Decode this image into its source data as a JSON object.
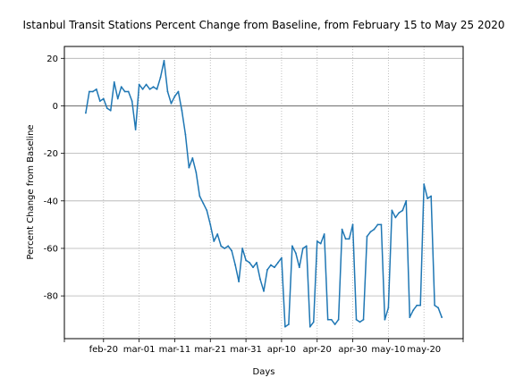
{
  "chart_data": {
    "type": "line",
    "title": "Istanbul Transit Stations Percent Change from Baseline, from February 15 to May 25 2020",
    "xlabel": "Days",
    "ylabel": "Percent Change from Baseline",
    "x_start": "2020-02-15",
    "x_end": "2020-05-25",
    "xlim": [
      "2020-02-09",
      "2020-05-31"
    ],
    "ylim": [
      -98,
      25
    ],
    "x_ticks": [
      {
        "date": "2020-02-20",
        "label": "feb-20"
      },
      {
        "date": "2020-03-01",
        "label": "mar-01"
      },
      {
        "date": "2020-03-11",
        "label": "mar-11"
      },
      {
        "date": "2020-03-21",
        "label": "mar-21"
      },
      {
        "date": "2020-03-31",
        "label": "mar-31"
      },
      {
        "date": "2020-04-10",
        "label": "apr-10"
      },
      {
        "date": "2020-04-20",
        "label": "apr-20"
      },
      {
        "date": "2020-04-30",
        "label": "apr-30"
      },
      {
        "date": "2020-05-10",
        "label": "may-10"
      },
      {
        "date": "2020-05-20",
        "label": "may-20"
      }
    ],
    "y_ticks": [
      20,
      0,
      -20,
      -40,
      -60,
      -80
    ],
    "grid": {
      "x": "dotted",
      "y": "solid"
    },
    "baseline": 0,
    "line_color": "#1f77b4",
    "values": [
      -3,
      6,
      6,
      7,
      2,
      3,
      -1,
      -2,
      10,
      3,
      8,
      6,
      6,
      2,
      -10,
      9,
      7,
      9,
      7,
      8,
      7,
      12,
      19,
      6,
      1,
      4,
      6,
      -2,
      -12,
      -26,
      -22,
      -28,
      -38,
      -41,
      -44,
      -50,
      -57,
      -54,
      -59,
      -60,
      -59,
      -61,
      -67,
      -74,
      -60,
      -65,
      -66,
      -68,
      -66,
      -73,
      -78,
      -69,
      -67,
      -68,
      -66,
      -64,
      -93,
      -92,
      -59,
      -62,
      -68,
      -60,
      -59,
      -93,
      -91,
      -57,
      -58,
      -54,
      -90,
      -90,
      -92,
      -90,
      -52,
      -56,
      -56,
      -50,
      -90,
      -91,
      -90,
      -55,
      -53,
      -52,
      -50,
      -50,
      -90,
      -85,
      -44,
      -47,
      -45,
      -44,
      -40,
      -89,
      -86,
      -84,
      -84,
      -33,
      -39,
      -38,
      -84,
      -85,
      -89
    ]
  }
}
